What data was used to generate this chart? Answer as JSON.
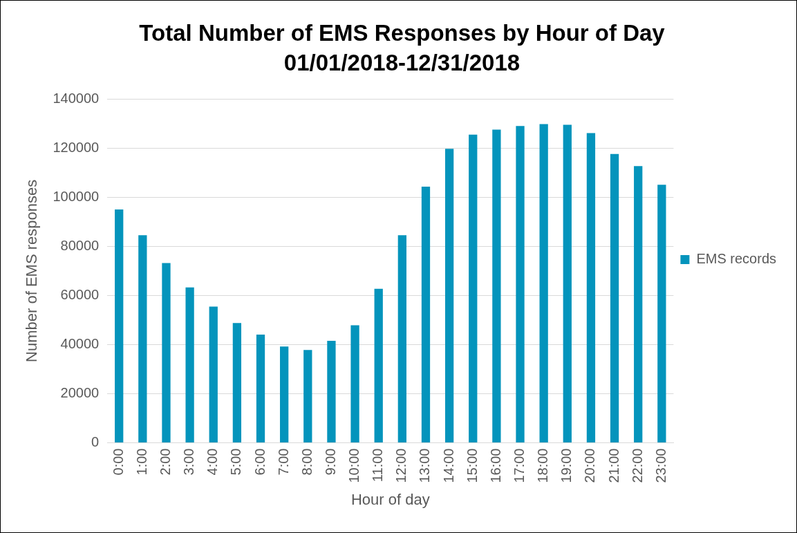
{
  "chart_data": {
    "type": "bar",
    "title": "Total Number of EMS Responses by Hour of Day",
    "subtitle": "01/01/2018-12/31/2018",
    "xlabel": "Hour of day",
    "ylabel": "Number of EMS responses",
    "categories": [
      "0:00",
      "1:00",
      "2:00",
      "3:00",
      "4:00",
      "5:00",
      "6:00",
      "7:00",
      "8:00",
      "9:00",
      "10:00",
      "11:00",
      "12:00",
      "13:00",
      "14:00",
      "15:00",
      "16:00",
      "17:00",
      "18:00",
      "19:00",
      "20:00",
      "21:00",
      "22:00",
      "23:00"
    ],
    "series": [
      {
        "name": "EMS records",
        "color": "#0494bc",
        "values": [
          95000,
          84500,
          73200,
          63300,
          55500,
          48800,
          44100,
          39200,
          37800,
          41500,
          47900,
          62700,
          84500,
          104300,
          119700,
          125500,
          127500,
          129000,
          129800,
          129500,
          126100,
          117600,
          112700,
          105100
        ]
      }
    ],
    "ylim": [
      0,
      140000
    ],
    "yticks": [
      0,
      20000,
      40000,
      60000,
      80000,
      100000,
      120000,
      140000
    ],
    "grid": "y",
    "legend": "right"
  }
}
